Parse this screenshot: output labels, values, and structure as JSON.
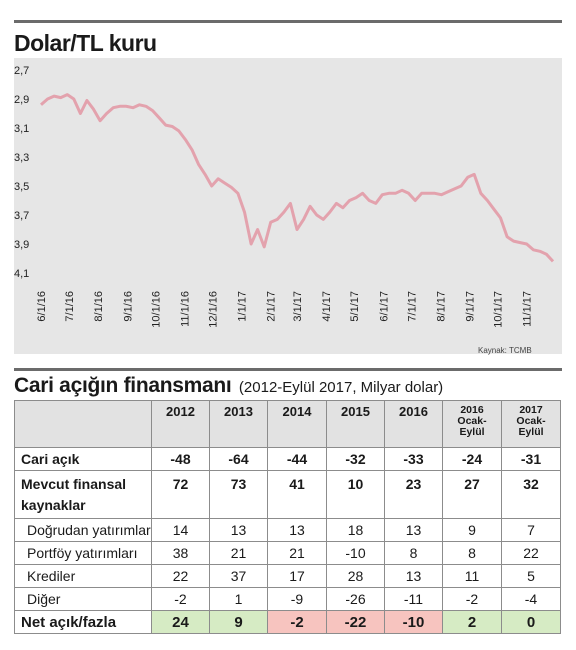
{
  "title": "Dolar/TL kuru",
  "source": "Kaynak: TCMB",
  "chart_data": {
    "type": "line",
    "color": "#e3a2ad",
    "background": "#e6e6e6",
    "ylim": [
      2.7,
      4.1
    ],
    "y_axis": "inverted",
    "yticks": [
      "2,7",
      "2,9",
      "3,1",
      "3,3",
      "3,5",
      "3,7",
      "3,9",
      "4,1"
    ],
    "xticks": [
      "6/1/16",
      "7/1/16",
      "8/1/16",
      "9/1/16",
      "10/1/16",
      "11/1/16",
      "12/1/16",
      "1/1/17",
      "2/1/17",
      "3/1/17",
      "4/1/17",
      "5/1/17",
      "6/1/17",
      "7/1/17",
      "8/1/17",
      "9/1/17",
      "10/1/17",
      "11/1/17"
    ],
    "x": [
      "2016-06-01",
      "2016-06-08",
      "2016-06-15",
      "2016-06-22",
      "2016-06-29",
      "2016-07-06",
      "2016-07-13",
      "2016-07-20",
      "2016-07-27",
      "2016-08-03",
      "2016-08-10",
      "2016-08-17",
      "2016-08-24",
      "2016-08-31",
      "2016-09-07",
      "2016-09-14",
      "2016-09-21",
      "2016-09-28",
      "2016-10-05",
      "2016-10-12",
      "2016-10-19",
      "2016-10-26",
      "2016-11-02",
      "2016-11-09",
      "2016-11-16",
      "2016-11-23",
      "2016-11-30",
      "2016-12-07",
      "2016-12-14",
      "2016-12-21",
      "2016-12-28",
      "2017-01-04",
      "2017-01-11",
      "2017-01-18",
      "2017-01-25",
      "2017-02-01",
      "2017-02-08",
      "2017-02-15",
      "2017-02-22",
      "2017-03-01",
      "2017-03-08",
      "2017-03-15",
      "2017-03-22",
      "2017-03-29",
      "2017-04-05",
      "2017-04-12",
      "2017-04-19",
      "2017-04-26",
      "2017-05-03",
      "2017-05-10",
      "2017-05-17",
      "2017-05-24",
      "2017-05-31",
      "2017-06-07",
      "2017-06-14",
      "2017-06-21",
      "2017-06-28",
      "2017-07-05",
      "2017-07-12",
      "2017-07-19",
      "2017-07-26",
      "2017-08-02",
      "2017-08-09",
      "2017-08-16",
      "2017-08-23",
      "2017-08-30",
      "2017-09-06",
      "2017-09-13",
      "2017-09-20",
      "2017-09-27",
      "2017-10-04",
      "2017-10-11",
      "2017-10-18",
      "2017-10-25",
      "2017-11-01",
      "2017-11-08",
      "2017-11-15",
      "2017-11-22",
      "2017-11-29"
    ],
    "values": [
      2.94,
      2.9,
      2.88,
      2.89,
      2.87,
      2.9,
      3.0,
      2.91,
      2.97,
      3.05,
      3.0,
      2.96,
      2.95,
      2.95,
      2.96,
      2.94,
      2.95,
      2.98,
      3.03,
      3.08,
      3.09,
      3.12,
      3.18,
      3.25,
      3.35,
      3.42,
      3.5,
      3.45,
      3.48,
      3.51,
      3.55,
      3.68,
      3.9,
      3.8,
      3.92,
      3.75,
      3.73,
      3.68,
      3.62,
      3.8,
      3.73,
      3.64,
      3.7,
      3.73,
      3.68,
      3.62,
      3.65,
      3.6,
      3.58,
      3.55,
      3.6,
      3.62,
      3.56,
      3.55,
      3.55,
      3.53,
      3.55,
      3.6,
      3.55,
      3.55,
      3.55,
      3.56,
      3.54,
      3.52,
      3.5,
      3.44,
      3.42,
      3.55,
      3.6,
      3.66,
      3.72,
      3.85,
      3.88,
      3.89,
      3.9,
      3.94,
      3.95,
      3.97,
      4.02
    ]
  },
  "table": {
    "title": "Cari açığın finansmanı",
    "subtitle": "(2012-Eylül 2017, Milyar dolar)",
    "headers": [
      "2012",
      "2013",
      "2014",
      "2015",
      "2016",
      "2016\nOcak-\nEylül",
      "2017\nOcak-\nEylül"
    ],
    "rows": [
      {
        "label": "Cari açık",
        "values": [
          "-48",
          "-64",
          "-44",
          "-32",
          "-33",
          "-24",
          "-31"
        ]
      },
      {
        "label": "Mevcut finansal\nkaynaklar",
        "values": [
          "72",
          "73",
          "41",
          "10",
          "23",
          "27",
          "32"
        ]
      },
      {
        "label": "Doğrudan yatırımlar",
        "values": [
          "14",
          "13",
          "13",
          "18",
          "13",
          "9",
          "7"
        ]
      },
      {
        "label": "Portföy yatırımları",
        "values": [
          "38",
          "21",
          "21",
          "-10",
          "8",
          "8",
          "22"
        ]
      },
      {
        "label": "Krediler",
        "values": [
          "22",
          "37",
          "17",
          "28",
          "13",
          "11",
          "5"
        ]
      },
      {
        "label": "Diğer",
        "values": [
          "-2",
          "1",
          "-9",
          "-26",
          "-11",
          "-2",
          "-4"
        ]
      },
      {
        "label": "Net açık/fazla",
        "values": [
          "24",
          "9",
          "-2",
          "-22",
          "-10",
          "2",
          "0"
        ]
      }
    ],
    "positive_color": "#d6ebc4",
    "negative_color": "#f7c4bf"
  }
}
